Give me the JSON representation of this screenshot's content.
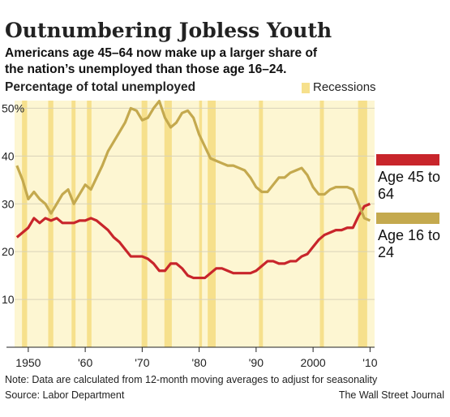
{
  "chart_data": {
    "type": "line",
    "title": "Outnumbering Jobless Youth",
    "subtitle": "Americans age 45–64 now make up a larger share of the nation’s unemployed than those age 16–24.",
    "ylabel": "Percentage of total unemployed",
    "recession_label": "Recessions",
    "recession_color": "#f6e08c",
    "background": "#fdf6d2",
    "recessions": [
      [
        1948.9,
        1949.8
      ],
      [
        1953.5,
        1954.4
      ],
      [
        1957.6,
        1958.3
      ],
      [
        1960.3,
        1961.1
      ],
      [
        1969.9,
        1970.9
      ],
      [
        1973.9,
        1975.2
      ],
      [
        1980.0,
        1980.5
      ],
      [
        1981.5,
        1982.9
      ],
      [
        1990.5,
        1991.2
      ],
      [
        2001.2,
        2001.9
      ],
      [
        2007.9,
        2009.5
      ]
    ],
    "x": [
      1948,
      1949,
      1950,
      1951,
      1952,
      1953,
      1954,
      1955,
      1956,
      1957,
      1958,
      1959,
      1960,
      1961,
      1962,
      1963,
      1964,
      1965,
      1966,
      1967,
      1968,
      1969,
      1970,
      1971,
      1972,
      1973,
      1974,
      1975,
      1976,
      1977,
      1978,
      1979,
      1980,
      1981,
      1982,
      1983,
      1984,
      1985,
      1986,
      1987,
      1988,
      1989,
      1990,
      1991,
      1992,
      1993,
      1994,
      1995,
      1996,
      1997,
      1998,
      1999,
      2000,
      2001,
      2002,
      2003,
      2004,
      2005,
      2006,
      2007,
      2008,
      2009,
      2010
    ],
    "series": [
      {
        "name": "Age 45 to 64",
        "color": "#c8252b",
        "values": [
          23,
          24,
          25,
          27,
          26,
          27,
          26.5,
          27,
          26,
          26,
          26,
          26.5,
          26.5,
          27,
          26.5,
          25.5,
          24.5,
          23,
          22,
          20.5,
          19,
          19,
          19,
          18.5,
          17.5,
          16,
          16,
          17.5,
          17.5,
          16.5,
          15,
          14.5,
          14.5,
          14.5,
          15.5,
          16.5,
          16.5,
          16,
          15.5,
          15.5,
          15.5,
          15.5,
          16,
          17,
          18,
          18,
          17.5,
          17.5,
          18,
          18,
          19,
          19.5,
          21,
          22.5,
          23.5,
          24,
          24.5,
          24.5,
          25,
          25,
          27.5,
          29.5,
          30
        ]
      },
      {
        "name": "Age 16 to 24",
        "color": "#c4a94e",
        "values": [
          38,
          35,
          31,
          32.5,
          31,
          30,
          28,
          30,
          32,
          33,
          30,
          32,
          34,
          33,
          35.5,
          38,
          41,
          43,
          45,
          47,
          50,
          49.5,
          47.5,
          48,
          50,
          51.5,
          48,
          46,
          47,
          49,
          49.5,
          48,
          44.5,
          42,
          39.5,
          39,
          38.5,
          38,
          38,
          37.5,
          37,
          35.5,
          33.5,
          32.5,
          32.5,
          34,
          35.5,
          35.5,
          36.5,
          37,
          37.5,
          36,
          33.5,
          32,
          32,
          33,
          33.5,
          33.5,
          33.5,
          33,
          30,
          27,
          26.5
        ]
      }
    ],
    "xlim": [
      1947.6,
      2010.8
    ],
    "xticks": [
      {
        "value": 1950,
        "label": "1950"
      },
      {
        "value": 1960,
        "label": "'60"
      },
      {
        "value": 1970,
        "label": "'70"
      },
      {
        "value": 1980,
        "label": "'80"
      },
      {
        "value": 1990,
        "label": "'90"
      },
      {
        "value": 2000,
        "label": "2000"
      },
      {
        "value": 2010,
        "label": "'10"
      }
    ],
    "ylim": [
      0,
      51.6
    ],
    "yticks": [
      10,
      20,
      30,
      40,
      {
        "value": 50,
        "label": "50%"
      }
    ],
    "grid": true,
    "note": "Note: Data are calculated from 12-month moving averages to adjust for seasonality",
    "source": "Source: Labor Department",
    "credit": "The Wall Street Journal"
  }
}
